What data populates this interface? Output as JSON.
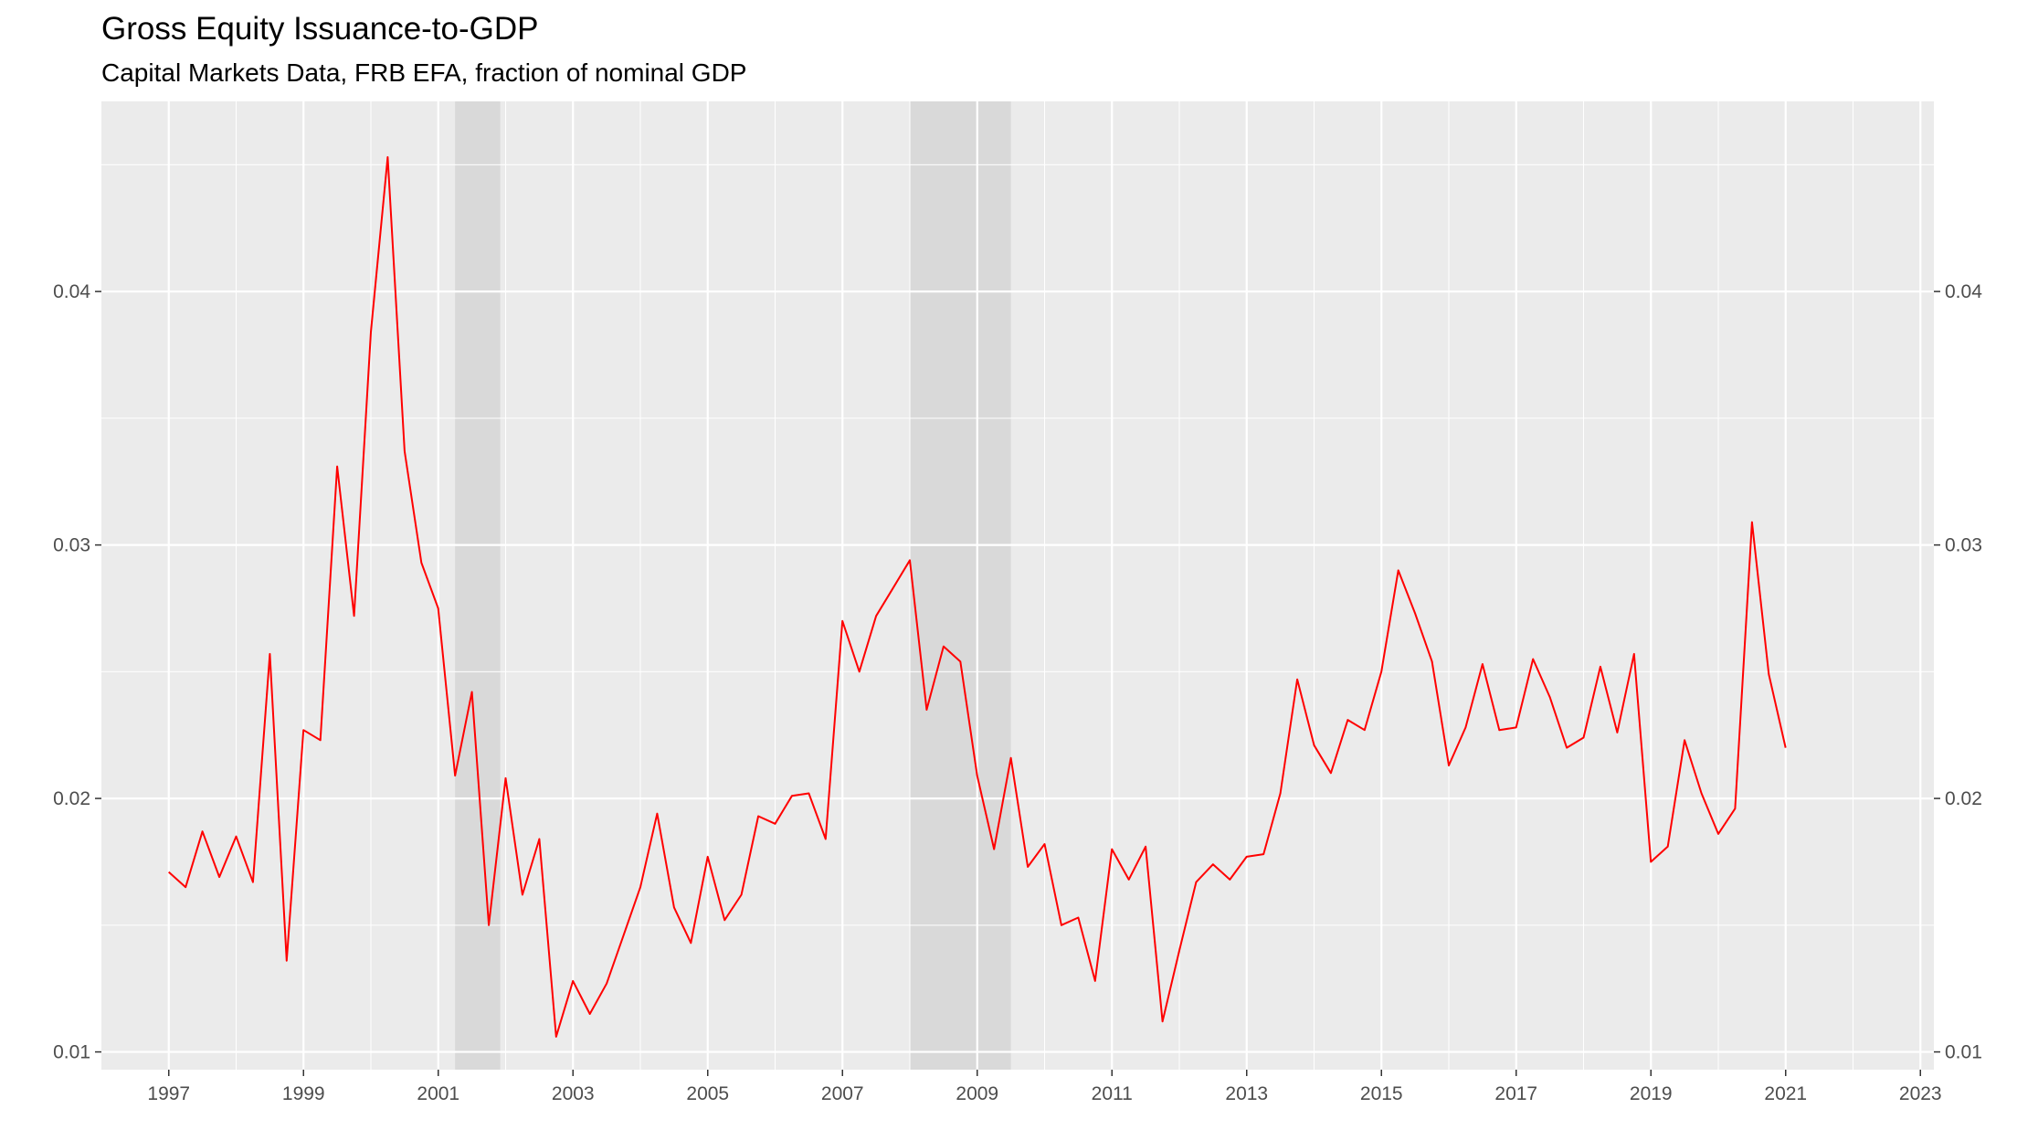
{
  "chart_data": {
    "type": "line",
    "title": "Gross Equity Issuance-to-GDP",
    "subtitle": "Capital Markets Data, FRB EFA, fraction of nominal GDP",
    "xlabel": "",
    "ylabel": "",
    "xlim": [
      1996.0,
      2023.2
    ],
    "ylim": [
      0.0093,
      0.0475
    ],
    "x_ticks": [
      {
        "value": 1997,
        "label": "1997"
      },
      {
        "value": 1999,
        "label": "1999"
      },
      {
        "value": 2001,
        "label": "2001"
      },
      {
        "value": 2003,
        "label": "2003"
      },
      {
        "value": 2005,
        "label": "2005"
      },
      {
        "value": 2007,
        "label": "2007"
      },
      {
        "value": 2009,
        "label": "2009"
      },
      {
        "value": 2011,
        "label": "2011"
      },
      {
        "value": 2013,
        "label": "2013"
      },
      {
        "value": 2015,
        "label": "2015"
      },
      {
        "value": 2017,
        "label": "2017"
      },
      {
        "value": 2019,
        "label": "2019"
      },
      {
        "value": 2021,
        "label": "2021"
      },
      {
        "value": 2023,
        "label": "2023"
      }
    ],
    "y_ticks": [
      {
        "value": 0.01,
        "label": "0.01"
      },
      {
        "value": 0.02,
        "label": "0.02"
      },
      {
        "value": 0.03,
        "label": "0.03"
      },
      {
        "value": 0.04,
        "label": "0.04"
      }
    ],
    "y_axis_sides": "both",
    "grid": true,
    "background_color": "#ebebeb",
    "grid_color": "#ffffff",
    "shaded_regions": [
      {
        "start": 2001.25,
        "end": 2001.92,
        "color": "#d9d9d9"
      },
      {
        "start": 2008.0,
        "end": 2009.5,
        "color": "#d9d9d9"
      }
    ],
    "series": [
      {
        "color": "#ff0000",
        "points": [
          [
            1997.0,
            0.0171
          ],
          [
            1997.25,
            0.0165
          ],
          [
            1997.5,
            0.0187
          ],
          [
            1997.75,
            0.0169
          ],
          [
            1998.0,
            0.0185
          ],
          [
            1998.25,
            0.0167
          ],
          [
            1998.5,
            0.0257
          ],
          [
            1998.75,
            0.0136
          ],
          [
            1999.0,
            0.0227
          ],
          [
            1999.25,
            0.0223
          ],
          [
            1999.5,
            0.0331
          ],
          [
            1999.75,
            0.0272
          ],
          [
            2000.0,
            0.0384
          ],
          [
            2000.25,
            0.0453
          ],
          [
            2000.5,
            0.0337
          ],
          [
            2000.75,
            0.0293
          ],
          [
            2001.0,
            0.0275
          ],
          [
            2001.25,
            0.0209
          ],
          [
            2001.5,
            0.0242
          ],
          [
            2001.75,
            0.015
          ],
          [
            2002.0,
            0.0208
          ],
          [
            2002.25,
            0.0162
          ],
          [
            2002.5,
            0.0184
          ],
          [
            2002.75,
            0.0106
          ],
          [
            2003.0,
            0.0128
          ],
          [
            2003.25,
            0.0115
          ],
          [
            2003.5,
            0.0127
          ],
          [
            2003.75,
            0.0146
          ],
          [
            2004.0,
            0.0165
          ],
          [
            2004.25,
            0.0194
          ],
          [
            2004.5,
            0.0157
          ],
          [
            2004.75,
            0.0143
          ],
          [
            2005.0,
            0.0177
          ],
          [
            2005.25,
            0.0152
          ],
          [
            2005.5,
            0.0162
          ],
          [
            2005.75,
            0.0193
          ],
          [
            2006.0,
            0.019
          ],
          [
            2006.25,
            0.0201
          ],
          [
            2006.5,
            0.0202
          ],
          [
            2006.75,
            0.0184
          ],
          [
            2007.0,
            0.027
          ],
          [
            2007.25,
            0.025
          ],
          [
            2007.5,
            0.0272
          ],
          [
            2007.75,
            0.0283
          ],
          [
            2008.0,
            0.0294
          ],
          [
            2008.25,
            0.0235
          ],
          [
            2008.5,
            0.026
          ],
          [
            2008.75,
            0.0254
          ],
          [
            2009.0,
            0.0209
          ],
          [
            2009.25,
            0.018
          ],
          [
            2009.5,
            0.0216
          ],
          [
            2009.75,
            0.0173
          ],
          [
            2010.0,
            0.0182
          ],
          [
            2010.25,
            0.015
          ],
          [
            2010.5,
            0.0153
          ],
          [
            2010.75,
            0.0128
          ],
          [
            2011.0,
            0.018
          ],
          [
            2011.25,
            0.0168
          ],
          [
            2011.5,
            0.0181
          ],
          [
            2011.75,
            0.0112
          ],
          [
            2012.0,
            0.014
          ],
          [
            2012.25,
            0.0167
          ],
          [
            2012.5,
            0.0174
          ],
          [
            2012.75,
            0.0168
          ],
          [
            2013.0,
            0.0177
          ],
          [
            2013.25,
            0.0178
          ],
          [
            2013.5,
            0.0202
          ],
          [
            2013.75,
            0.0247
          ],
          [
            2014.0,
            0.0221
          ],
          [
            2014.25,
            0.021
          ],
          [
            2014.5,
            0.0231
          ],
          [
            2014.75,
            0.0227
          ],
          [
            2015.0,
            0.025
          ],
          [
            2015.25,
            0.029
          ],
          [
            2015.5,
            0.0273
          ],
          [
            2015.75,
            0.0254
          ],
          [
            2016.0,
            0.0213
          ],
          [
            2016.25,
            0.0228
          ],
          [
            2016.5,
            0.0253
          ],
          [
            2016.75,
            0.0227
          ],
          [
            2017.0,
            0.0228
          ],
          [
            2017.25,
            0.0255
          ],
          [
            2017.5,
            0.024
          ],
          [
            2017.75,
            0.022
          ],
          [
            2018.0,
            0.0224
          ],
          [
            2018.25,
            0.0252
          ],
          [
            2018.5,
            0.0226
          ],
          [
            2018.75,
            0.0257
          ],
          [
            2019.0,
            0.0175
          ],
          [
            2019.25,
            0.0181
          ],
          [
            2019.5,
            0.0223
          ],
          [
            2019.75,
            0.0202
          ],
          [
            2020.0,
            0.0186
          ],
          [
            2020.25,
            0.0196
          ],
          [
            2020.5,
            0.0309
          ],
          [
            2020.75,
            0.0249
          ],
          [
            2021.0,
            0.022
          ]
        ]
      }
    ]
  }
}
